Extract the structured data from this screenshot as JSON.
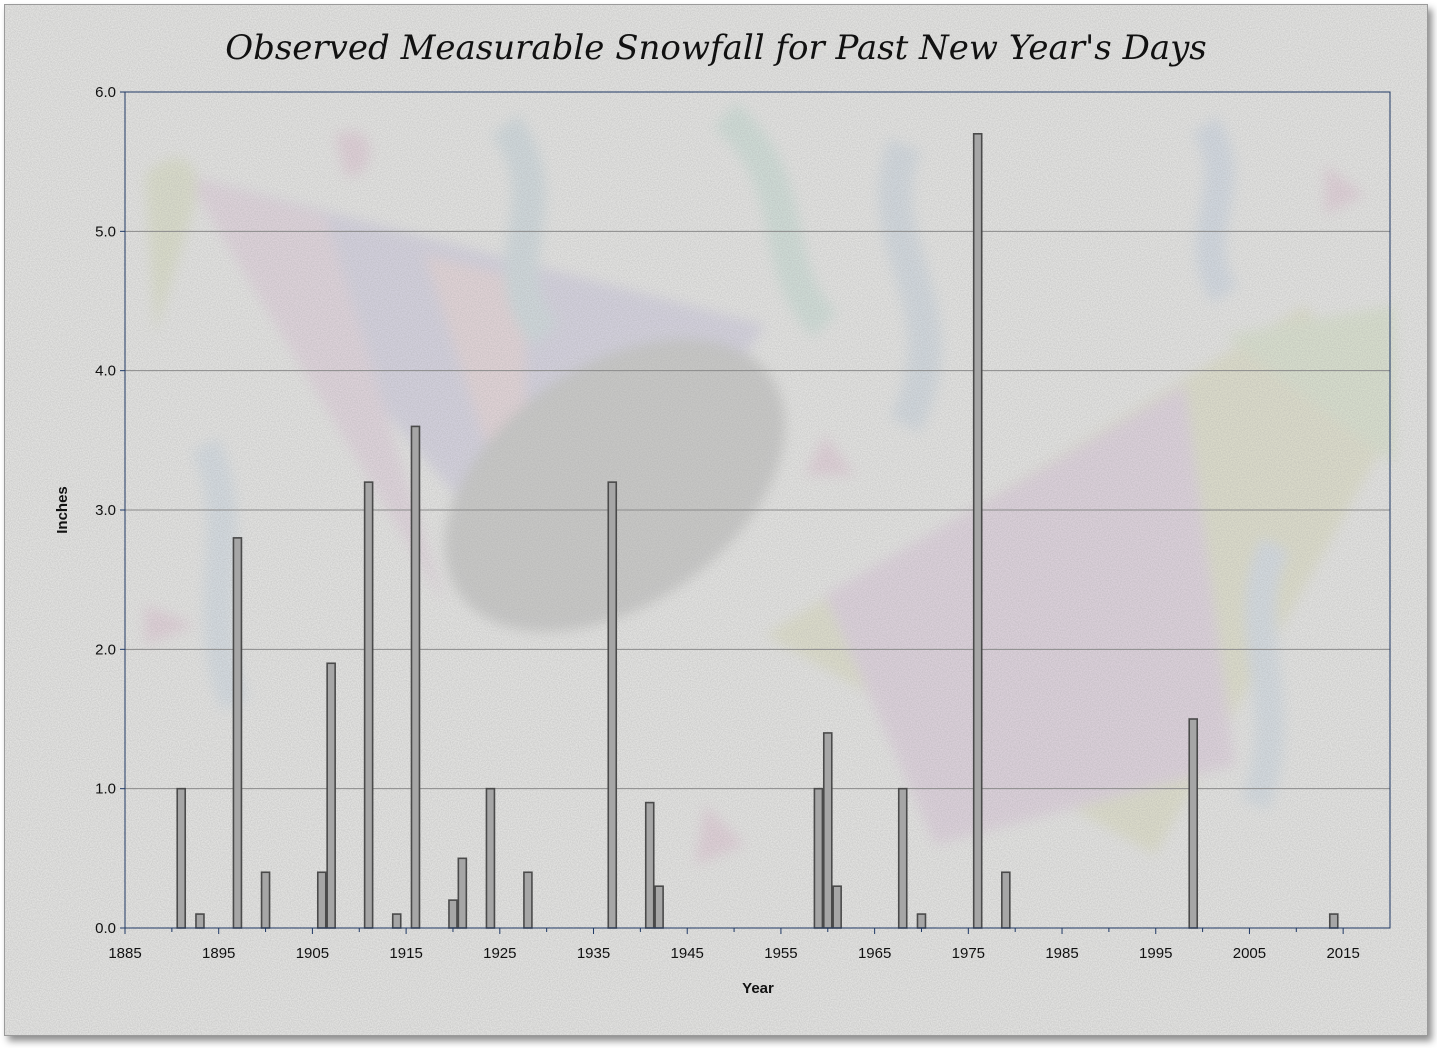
{
  "chart_data": {
    "type": "bar",
    "title": "Observed Measurable Snowfall for Past New Year's Days",
    "xlabel": "Year",
    "ylabel": "Inches",
    "xlim": [
      1885,
      2020
    ],
    "ylim": [
      0,
      6
    ],
    "x_ticks": [
      1885,
      1895,
      1905,
      1915,
      1925,
      1935,
      1945,
      1955,
      1965,
      1975,
      1985,
      1995,
      2005,
      2015
    ],
    "y_ticks": [
      "0.0",
      "1.0",
      "2.0",
      "3.0",
      "4.0",
      "5.0",
      "6.0"
    ],
    "grid": "horizontal",
    "legend": "none",
    "x": [
      1891,
      1893,
      1897,
      1900,
      1906,
      1907,
      1911,
      1914,
      1916,
      1920,
      1921,
      1924,
      1928,
      1937,
      1941,
      1942,
      1959,
      1960,
      1961,
      1968,
      1970,
      1976,
      1979,
      1999,
      2014
    ],
    "values": [
      1.0,
      0.1,
      2.8,
      0.4,
      0.4,
      1.9,
      3.2,
      0.1,
      3.6,
      0.2,
      0.5,
      1.0,
      0.4,
      3.2,
      0.9,
      0.3,
      1.0,
      1.4,
      0.3,
      1.0,
      0.1,
      5.7,
      0.4,
      1.5,
      0.1
    ],
    "colors": {
      "bar_fill": "#a6a6a6",
      "bar_stroke": "#4a4a4a",
      "plot_border": "#1f3864",
      "gridline": "#8a8a8a",
      "background": "#eeeeec"
    }
  }
}
